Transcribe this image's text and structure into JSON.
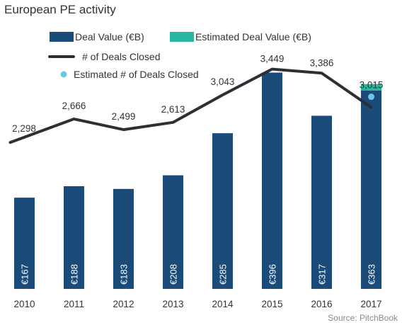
{
  "chart_data": {
    "type": "bar",
    "title": "European PE activity",
    "source": "Source: PitchBook",
    "categories": [
      "2010",
      "2011",
      "2012",
      "2013",
      "2014",
      "2015",
      "2016",
      "2017"
    ],
    "bar_labels": [
      "€167",
      "€188",
      "€183",
      "€208",
      "€285",
      "€396",
      "€317",
      "€363"
    ],
    "point_labels": [
      "2,298",
      "2,666",
      "2,499",
      "2,613",
      "3,043",
      "3,449",
      "3,386",
      "3,015"
    ],
    "series": [
      {
        "name": "Deal Value  (€B)",
        "type": "bar",
        "values": [
          167,
          188,
          183,
          208,
          285,
          396,
          317,
          363
        ],
        "color": "#1b4b78"
      },
      {
        "name": "Estimated Deal Value (€B)",
        "type": "bar-stack",
        "values": [
          0,
          0,
          0,
          0,
          0,
          0,
          0,
          12
        ],
        "color": "#2ab7a0"
      },
      {
        "name": "# of Deals Closed",
        "type": "line",
        "values": [
          2298,
          2666,
          2499,
          2613,
          3043,
          3449,
          3386,
          2850
        ],
        "color": "#2b2f36"
      },
      {
        "name": "Estimated # of Deals Closed",
        "type": "point",
        "values": [
          null,
          null,
          null,
          null,
          null,
          null,
          null,
          3015
        ],
        "color": "#6ec6e6"
      }
    ],
    "bar_axis_range": [
      0,
      420
    ],
    "line_axis_range": [
      0,
      3600
    ],
    "grid": false,
    "legend_position": "top-left"
  }
}
